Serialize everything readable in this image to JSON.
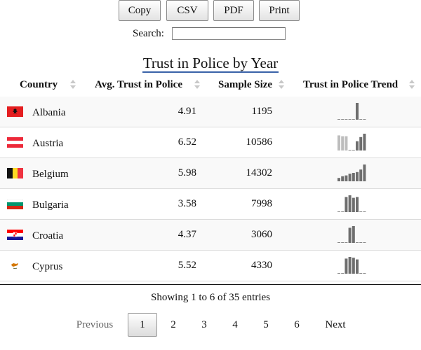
{
  "toolbar": {
    "buttons": [
      {
        "label": "Copy"
      },
      {
        "label": "CSV"
      },
      {
        "label": "PDF"
      },
      {
        "label": "Print"
      }
    ]
  },
  "search": {
    "label": "Search:",
    "value": "",
    "placeholder": ""
  },
  "title": "Trust in Police by Year",
  "table": {
    "columns": [
      "Country",
      "Avg. Trust in Police",
      "Sample Size",
      "Trust in Police Trend"
    ],
    "rows": [
      {
        "country": "Albania",
        "flag": "albania-flag",
        "avg": "4.91",
        "sample": "1195",
        "trend": [
          0,
          0,
          0,
          0,
          0,
          1,
          0,
          0
        ]
      },
      {
        "country": "Austria",
        "flag": "austria-flag",
        "avg": "6.52",
        "sample": "10586",
        "trend": [
          0.9,
          0.85,
          0.85,
          0,
          0,
          0.55,
          0.8,
          1
        ]
      },
      {
        "country": "Belgium",
        "flag": "belgium-flag",
        "avg": "5.98",
        "sample": "14302",
        "trend": [
          0.2,
          0.3,
          0.35,
          0.45,
          0.5,
          0.55,
          0.7,
          1
        ]
      },
      {
        "country": "Bulgaria",
        "flag": "bulgaria-flag",
        "avg": "3.58",
        "sample": "7998",
        "trend": [
          0,
          0,
          0.9,
          1,
          0.85,
          0.9,
          0,
          0
        ]
      },
      {
        "country": "Croatia",
        "flag": "croatia-flag",
        "avg": "4.37",
        "sample": "3060",
        "trend": [
          0,
          0,
          0,
          0.9,
          1,
          0,
          0,
          0
        ]
      },
      {
        "country": "Cyprus",
        "flag": "cyprus-flag",
        "avg": "5.52",
        "sample": "4330",
        "trend": [
          0,
          0,
          0.9,
          1,
          0.95,
          0.85,
          0,
          0
        ]
      }
    ]
  },
  "info": "Showing 1 to 6 of 35 entries",
  "pagination": {
    "previous": "Previous",
    "pages": [
      "1",
      "2",
      "3",
      "4",
      "5",
      "6"
    ],
    "current": "1",
    "next": "Next"
  },
  "colors": {
    "title_underline": "#3a62a8",
    "bar_dark": "#6e6e6e",
    "bar_light": "#bdbdbd"
  }
}
